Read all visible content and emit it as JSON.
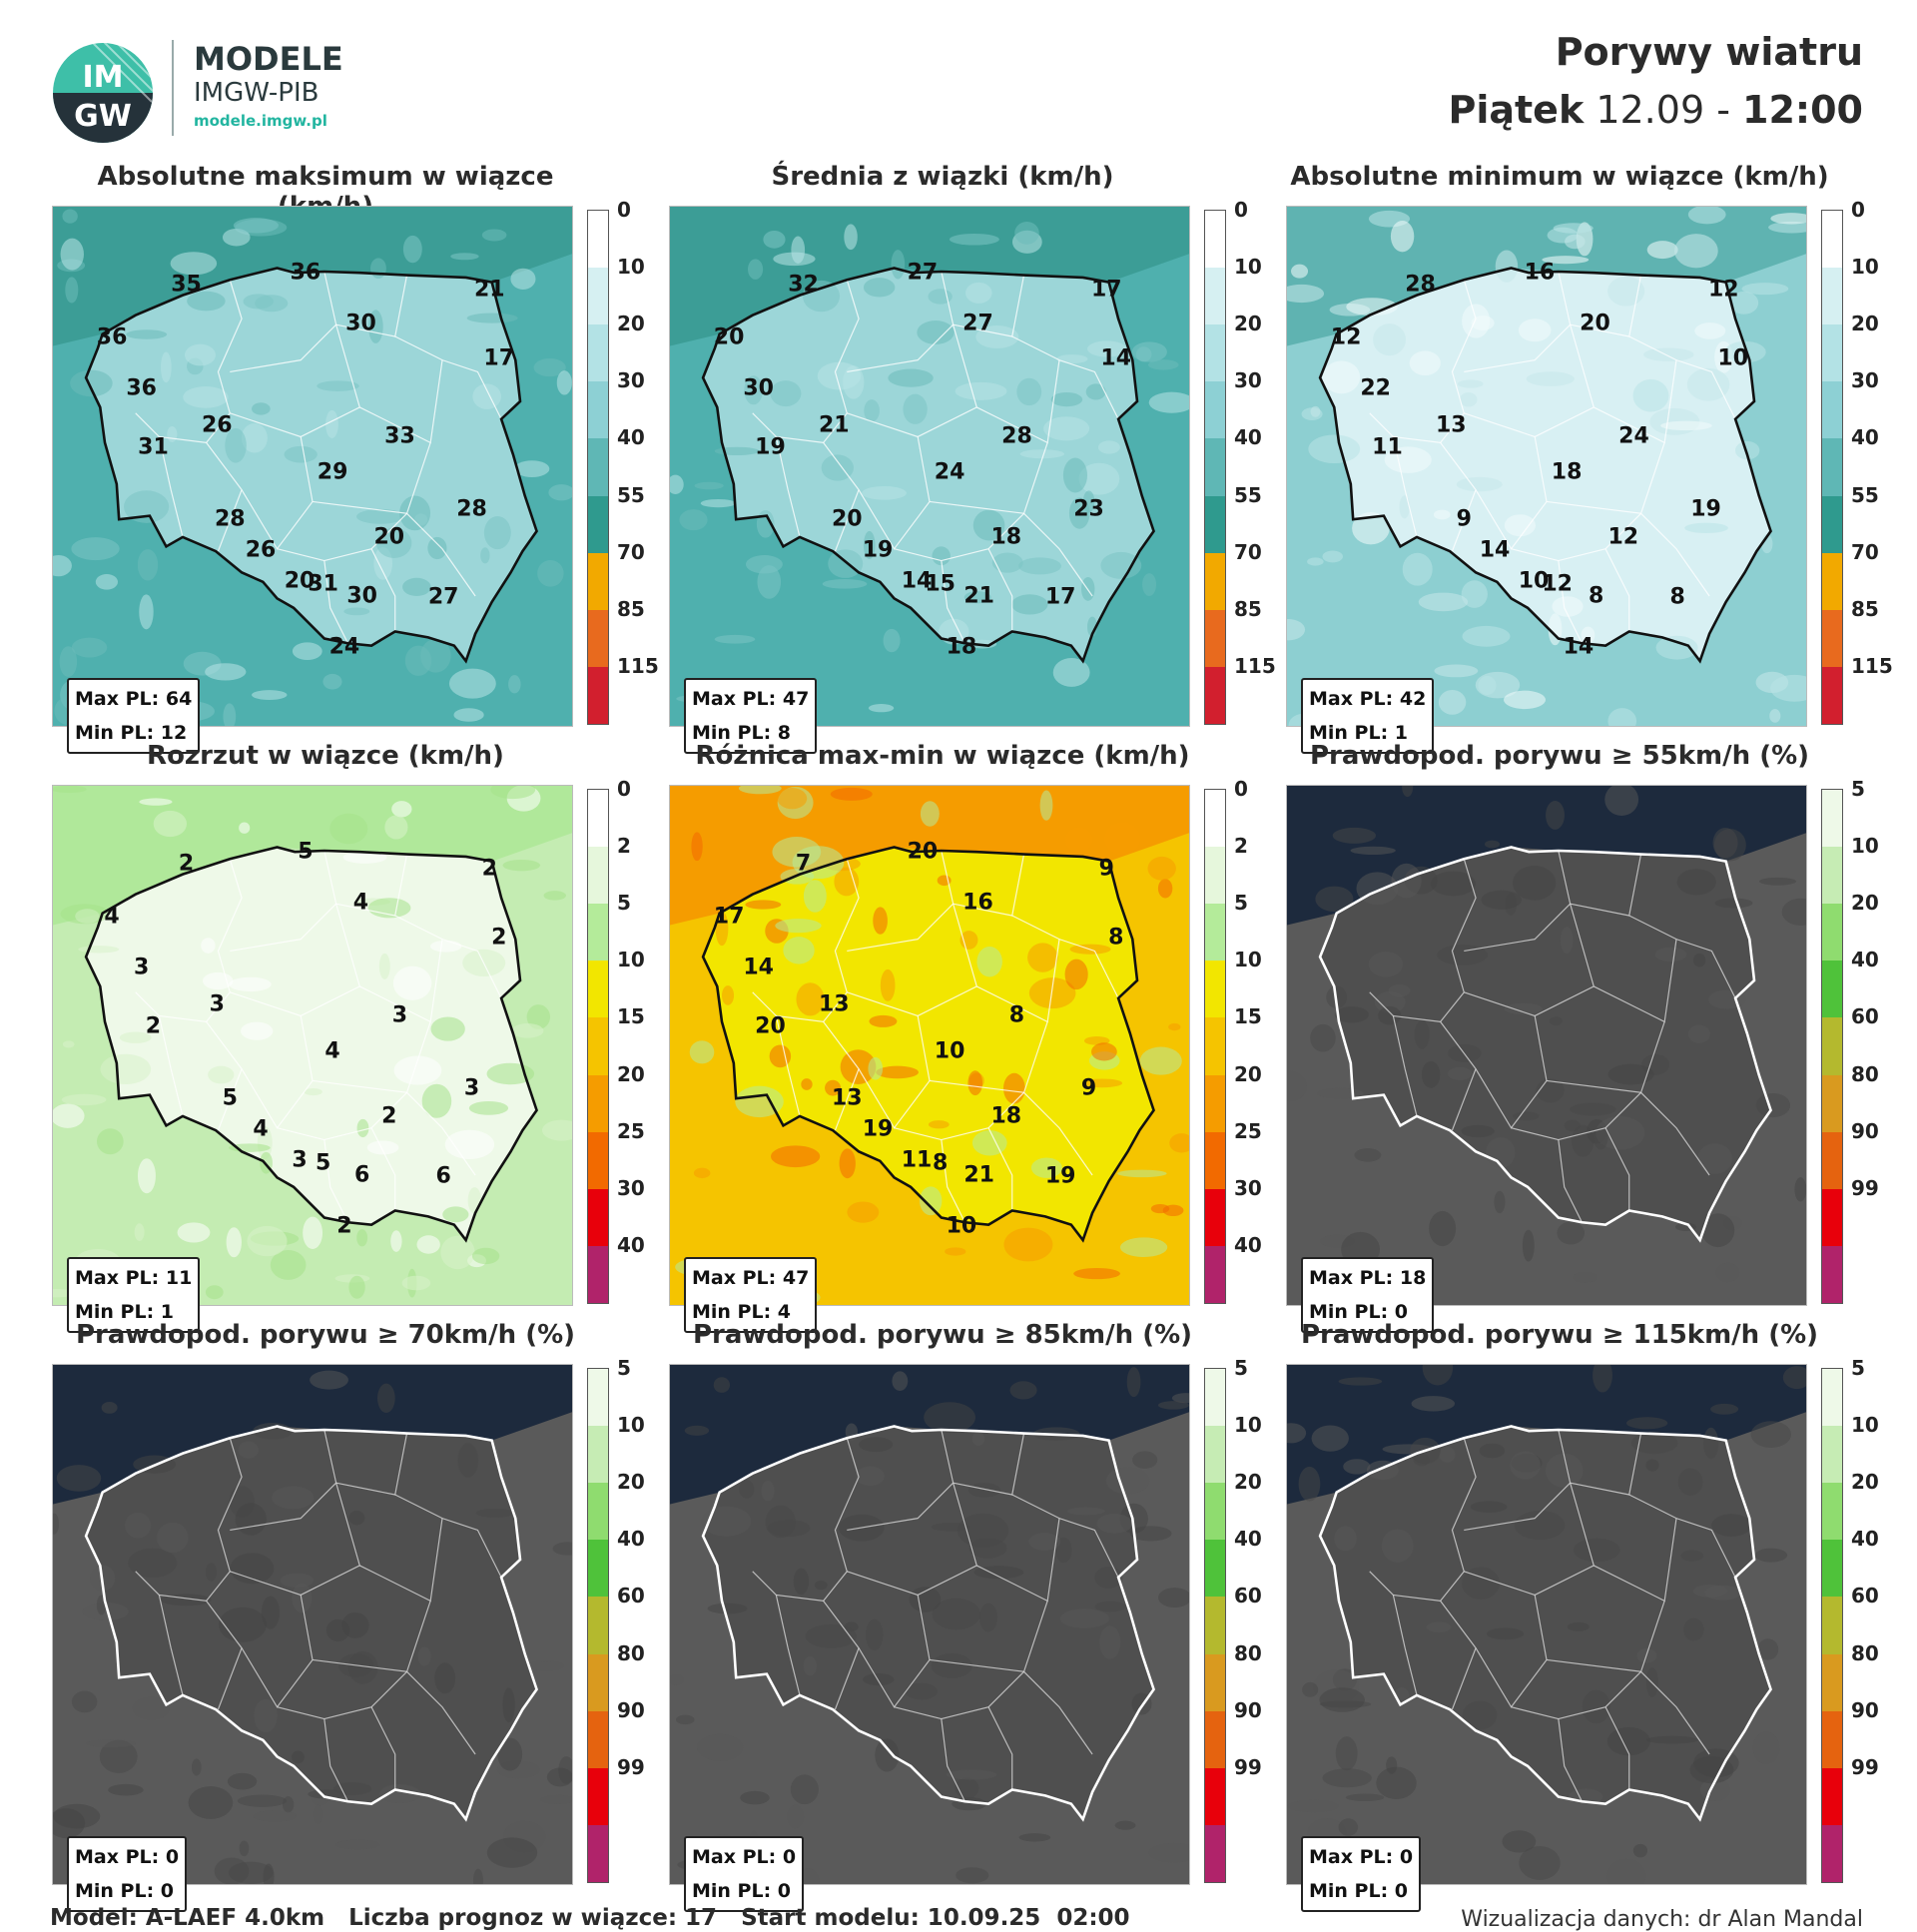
{
  "header": {
    "brand_line1": "MODELE",
    "brand_line2": "IMGW-PIB",
    "brand_url": "modele.imgw.pl",
    "logo_text_top": "IM",
    "logo_text_bottom": "GW",
    "title": "Porywy wiatru",
    "day": "Piątek",
    "date": "12.09",
    "separator": "-",
    "time": "12:00"
  },
  "panels": [
    {
      "title": "Absolutne maksimum w wiązce (km/h)",
      "theme": "teal",
      "stats": {
        "max": "Max PL: 64",
        "min": "Min PL: 12"
      },
      "colorbar": {
        "ticks": [
          "0",
          "10",
          "20",
          "30",
          "40",
          "55",
          "70",
          "85",
          "115"
        ],
        "colors": [
          "#ffffff",
          "#d6f0f2",
          "#b3e2e5",
          "#8dd0d4",
          "#5fb7b5",
          "#2f9a8e",
          "#f2a900",
          "#e86a1e",
          "#d21f2e"
        ]
      },
      "values": [
        "35",
        "36",
        "21",
        "30",
        "36",
        "17",
        "36",
        "26",
        "33",
        "31",
        "29",
        "28",
        "28",
        "26",
        "20",
        "31",
        "20",
        "30",
        "27",
        "24"
      ]
    },
    {
      "title": "Średnia z wiązki (km/h)",
      "theme": "teal",
      "stats": {
        "max": "Max PL: 47",
        "min": "Min PL: 8"
      },
      "colorbar": {
        "ticks": [
          "0",
          "10",
          "20",
          "30",
          "40",
          "55",
          "70",
          "85",
          "115"
        ],
        "colors": [
          "#ffffff",
          "#d6f0f2",
          "#b3e2e5",
          "#8dd0d4",
          "#5fb7b5",
          "#2f9a8e",
          "#f2a900",
          "#e86a1e",
          "#d21f2e"
        ]
      },
      "values": [
        "32",
        "27",
        "17",
        "27",
        "20",
        "14",
        "30",
        "21",
        "28",
        "19",
        "24",
        "23",
        "20",
        "19",
        "18",
        "15",
        "14",
        "21",
        "17",
        "18"
      ]
    },
    {
      "title": "Absolutne minimum w wiązce (km/h)",
      "theme": "teal-light",
      "stats": {
        "max": "Max PL: 42",
        "min": "Min PL: 1"
      },
      "colorbar": {
        "ticks": [
          "0",
          "10",
          "20",
          "30",
          "40",
          "55",
          "70",
          "85",
          "115"
        ],
        "colors": [
          "#ffffff",
          "#d6f0f2",
          "#b3e2e5",
          "#8dd0d4",
          "#5fb7b5",
          "#2f9a8e",
          "#f2a900",
          "#e86a1e",
          "#d21f2e"
        ]
      },
      "values": [
        "28",
        "16",
        "12",
        "20",
        "12",
        "10",
        "22",
        "13",
        "24",
        "11",
        "18",
        "19",
        "9",
        "14",
        "12",
        "12",
        "10",
        "8",
        "8",
        "14"
      ]
    },
    {
      "title": "Rozrzut w wiązce (km/h)",
      "theme": "green",
      "stats": {
        "max": "Max PL: 11",
        "min": "Min PL: 1"
      },
      "colorbar": {
        "ticks": [
          "0",
          "2",
          "5",
          "10",
          "15",
          "20",
          "25",
          "30",
          "40"
        ],
        "colors": [
          "#ffffff",
          "#e6f7dc",
          "#b4eb9a",
          "#f2e600",
          "#f5c400",
          "#f59c00",
          "#f26a00",
          "#e8000b",
          "#b0236a"
        ]
      },
      "values": [
        "2",
        "5",
        "2",
        "4",
        "4",
        "2",
        "3",
        "3",
        "3",
        "2",
        "4",
        "3",
        "5",
        "4",
        "2",
        "5",
        "3",
        "6",
        "6",
        "2"
      ]
    },
    {
      "title": "Różnica max-min w wiązce (km/h)",
      "theme": "yellow",
      "stats": {
        "max": "Max PL: 47",
        "min": "Min PL: 4"
      },
      "colorbar": {
        "ticks": [
          "0",
          "2",
          "5",
          "10",
          "15",
          "20",
          "25",
          "30",
          "40"
        ],
        "colors": [
          "#ffffff",
          "#e6f7dc",
          "#b4eb9a",
          "#f2e600",
          "#f5c400",
          "#f59c00",
          "#f26a00",
          "#e8000b",
          "#b0236a"
        ]
      },
      "values": [
        "7",
        "20",
        "9",
        "16",
        "17",
        "8",
        "14",
        "13",
        "8",
        "20",
        "10",
        "9",
        "13",
        "19",
        "18",
        "8",
        "11",
        "21",
        "19",
        "10"
      ]
    },
    {
      "title": "Prawdopod. porywu ≥ 55km/h (%)",
      "theme": "gray",
      "stats": {
        "max": "Max PL: 18",
        "min": "Min PL: 0"
      },
      "colorbar": {
        "ticks": [
          "5",
          "10",
          "20",
          "40",
          "60",
          "80",
          "90",
          "99"
        ],
        "colors": [
          "#eef9e8",
          "#c6ecb4",
          "#8fdc6f",
          "#4fc23a",
          "#b4b92e",
          "#d99a1f",
          "#e5630f",
          "#e8000b",
          "#b0236a"
        ]
      },
      "values": []
    },
    {
      "title": "Prawdopod. porywu ≥ 70km/h (%)",
      "theme": "gray",
      "stats": {
        "max": "Max PL: 0",
        "min": "Min PL: 0"
      },
      "colorbar": {
        "ticks": [
          "5",
          "10",
          "20",
          "40",
          "60",
          "80",
          "90",
          "99"
        ],
        "colors": [
          "#eef9e8",
          "#c6ecb4",
          "#8fdc6f",
          "#4fc23a",
          "#b4b92e",
          "#d99a1f",
          "#e5630f",
          "#e8000b",
          "#b0236a"
        ]
      },
      "values": []
    },
    {
      "title": "Prawdopod. porywu ≥ 85km/h (%)",
      "theme": "gray",
      "stats": {
        "max": "Max PL: 0",
        "min": "Min PL: 0"
      },
      "colorbar": {
        "ticks": [
          "5",
          "10",
          "20",
          "40",
          "60",
          "80",
          "90",
          "99"
        ],
        "colors": [
          "#eef9e8",
          "#c6ecb4",
          "#8fdc6f",
          "#4fc23a",
          "#b4b92e",
          "#d99a1f",
          "#e5630f",
          "#e8000b",
          "#b0236a"
        ]
      },
      "values": []
    },
    {
      "title": "Prawdopod. porywu ≥ 115km/h (%)",
      "theme": "gray",
      "stats": {
        "max": "Max PL: 0",
        "min": "Min PL: 0"
      },
      "colorbar": {
        "ticks": [
          "5",
          "10",
          "20",
          "40",
          "60",
          "80",
          "90",
          "99"
        ],
        "colors": [
          "#eef9e8",
          "#c6ecb4",
          "#8fdc6f",
          "#4fc23a",
          "#b4b92e",
          "#d99a1f",
          "#e5630f",
          "#e8000b",
          "#b0236a"
        ]
      },
      "values": []
    }
  ],
  "footer": {
    "model": "Model: A-LAEF 4.0km",
    "ensemble": "Liczba prognoz w wiązce: 17",
    "start": "Start modelu: 10.09.25  02:00",
    "credit": "Wizualizacja danych: dr Alan Mandal"
  }
}
